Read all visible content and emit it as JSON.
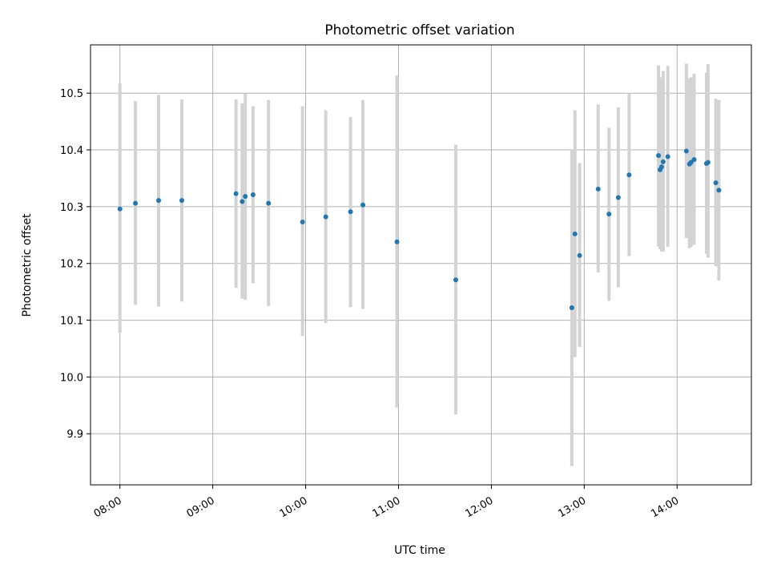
{
  "chart_data": {
    "type": "scatter",
    "title": "Photometric offset variation",
    "xlabel": "UTC time",
    "ylabel": "Photometric offset",
    "xlim": [
      "07:41",
      "14:48"
    ],
    "ylim": [
      9.81,
      10.585
    ],
    "grid": true,
    "x_ticks": [
      "08:00",
      "09:00",
      "10:00",
      "11:00",
      "12:00",
      "13:00",
      "14:00"
    ],
    "y_ticks": [
      9.9,
      10.0,
      10.1,
      10.2,
      10.3,
      10.4,
      10.5
    ],
    "y_tick_labels": [
      "9.9",
      "10.0",
      "10.1",
      "10.2",
      "10.3",
      "10.4",
      "10.5"
    ],
    "colors": {
      "points": "#1f77b4",
      "error_bars": "#d3d3d3",
      "grid": "#b0b0b0"
    },
    "points": [
      {
        "time": "08:00",
        "y": 10.296,
        "err_low": 10.078,
        "err_high": 10.517
      },
      {
        "time": "08:10",
        "y": 10.306,
        "err_low": 10.127,
        "err_high": 10.486
      },
      {
        "time": "08:25",
        "y": 10.311,
        "err_low": 10.124,
        "err_high": 10.497
      },
      {
        "time": "08:40",
        "y": 10.311,
        "err_low": 10.133,
        "err_high": 10.489
      },
      {
        "time": "09:15",
        "y": 10.323,
        "err_low": 10.157,
        "err_high": 10.489
      },
      {
        "time": "09:19",
        "y": 10.309,
        "err_low": 10.138,
        "err_high": 10.482
      },
      {
        "time": "09:21",
        "y": 10.318,
        "err_low": 10.136,
        "err_high": 10.499
      },
      {
        "time": "09:26",
        "y": 10.321,
        "err_low": 10.165,
        "err_high": 10.477
      },
      {
        "time": "09:36",
        "y": 10.306,
        "err_low": 10.125,
        "err_high": 10.488
      },
      {
        "time": "09:58",
        "y": 10.273,
        "err_low": 10.072,
        "err_high": 10.477
      },
      {
        "time": "10:13",
        "y": 10.282,
        "err_low": 10.095,
        "err_high": 10.47
      },
      {
        "time": "10:29",
        "y": 10.291,
        "err_low": 10.123,
        "err_high": 10.458
      },
      {
        "time": "10:37",
        "y": 10.303,
        "err_low": 10.12,
        "err_high": 10.488
      },
      {
        "time": "10:59",
        "y": 10.238,
        "err_low": 9.946,
        "err_high": 10.531
      },
      {
        "time": "11:37",
        "y": 10.171,
        "err_low": 9.934,
        "err_high": 10.409
      },
      {
        "time": "12:52",
        "y": 10.122,
        "err_low": 9.843,
        "err_high": 10.4
      },
      {
        "time": "12:54",
        "y": 10.252,
        "err_low": 10.035,
        "err_high": 10.47
      },
      {
        "time": "12:57",
        "y": 10.214,
        "err_low": 10.053,
        "err_high": 10.377
      },
      {
        "time": "13:09",
        "y": 10.331,
        "err_low": 10.184,
        "err_high": 10.48
      },
      {
        "time": "13:16",
        "y": 10.287,
        "err_low": 10.134,
        "err_high": 10.439
      },
      {
        "time": "13:22",
        "y": 10.316,
        "err_low": 10.158,
        "err_high": 10.475
      },
      {
        "time": "13:29",
        "y": 10.356,
        "err_low": 10.213,
        "err_high": 10.5
      },
      {
        "time": "13:48",
        "y": 10.39,
        "err_low": 10.23,
        "err_high": 10.549
      },
      {
        "time": "13:49",
        "y": 10.365,
        "err_low": 10.225,
        "err_high": 10.519
      },
      {
        "time": "13:50",
        "y": 10.37,
        "err_low": 10.221,
        "err_high": 10.528
      },
      {
        "time": "13:51",
        "y": 10.379,
        "err_low": 10.221,
        "err_high": 10.539
      },
      {
        "time": "13:54",
        "y": 10.388,
        "err_low": 10.229,
        "err_high": 10.548
      },
      {
        "time": "14:06",
        "y": 10.398,
        "err_low": 10.245,
        "err_high": 10.552
      },
      {
        "time": "14:08",
        "y": 10.375,
        "err_low": 10.227,
        "err_high": 10.526
      },
      {
        "time": "14:09",
        "y": 10.378,
        "err_low": 10.229,
        "err_high": 10.528
      },
      {
        "time": "14:11",
        "y": 10.383,
        "err_low": 10.233,
        "err_high": 10.534
      },
      {
        "time": "14:19",
        "y": 10.376,
        "err_low": 10.217,
        "err_high": 10.536
      },
      {
        "time": "14:20",
        "y": 10.378,
        "err_low": 10.21,
        "err_high": 10.551
      },
      {
        "time": "14:25",
        "y": 10.342,
        "err_low": 10.195,
        "err_high": 10.49
      },
      {
        "time": "14:27",
        "y": 10.329,
        "err_low": 10.17,
        "err_high": 10.488
      }
    ]
  }
}
